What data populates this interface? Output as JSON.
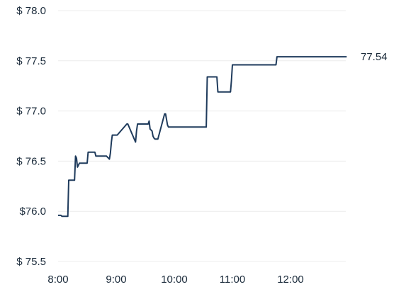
{
  "chart_data": {
    "type": "line",
    "title": "",
    "xlabel": "",
    "ylabel": "",
    "ylim": [
      75.5,
      78.0
    ],
    "xlim": [
      "8:00",
      "13:00"
    ],
    "y_ticks": [
      "$ 75.5",
      "$76.0",
      "$ 76.5",
      "$ 77.0",
      "$ 77.5",
      "$ 78.0"
    ],
    "y_tick_values": [
      75.5,
      76.0,
      76.5,
      77.0,
      77.5,
      78.0
    ],
    "x_ticks": [
      "8:00",
      "9:00",
      "10:00",
      "11:00",
      "12:00"
    ],
    "grid": "horizontal",
    "line_color": "#1f3b5c",
    "last_value_label": "77.54",
    "series": [
      {
        "x": [
          "8:00",
          "8:03",
          "8:04",
          "8:10",
          "8:11",
          "8:17",
          "8:18",
          "8:19",
          "8:20",
          "8:22",
          "8:23",
          "8:30",
          "8:31",
          "8:38",
          "8:39",
          "8:45",
          "8:50",
          "8:53",
          "8:54",
          "8:55",
          "8:56",
          "8:58",
          "9:01",
          "9:11",
          "9:12",
          "9:20",
          "9:21",
          "9:22",
          "9:25",
          "9:33",
          "9:34",
          "9:35",
          "9:37",
          "9:38",
          "9:39",
          "9:40",
          "9:43",
          "9:50",
          "9:51",
          "9:53",
          "9:54",
          "10:33",
          "10:34",
          "10:35",
          "10:44",
          "10:45",
          "10:58",
          "10:59",
          "11:00",
          "11:45",
          "11:46",
          "12:58"
        ],
        "values": [
          75.96,
          75.96,
          75.95,
          75.95,
          76.31,
          76.31,
          76.55,
          76.53,
          76.44,
          76.48,
          76.48,
          76.48,
          76.59,
          76.59,
          76.55,
          76.55,
          76.55,
          76.52,
          76.58,
          76.69,
          76.76,
          76.76,
          76.76,
          76.87,
          76.87,
          76.69,
          76.8,
          76.87,
          76.87,
          76.87,
          76.9,
          76.82,
          76.8,
          76.75,
          76.73,
          76.72,
          76.72,
          76.97,
          76.97,
          76.86,
          76.84,
          76.84,
          77.34,
          77.34,
          77.34,
          77.19,
          77.19,
          77.3,
          77.46,
          77.46,
          77.54,
          77.54
        ]
      }
    ]
  }
}
